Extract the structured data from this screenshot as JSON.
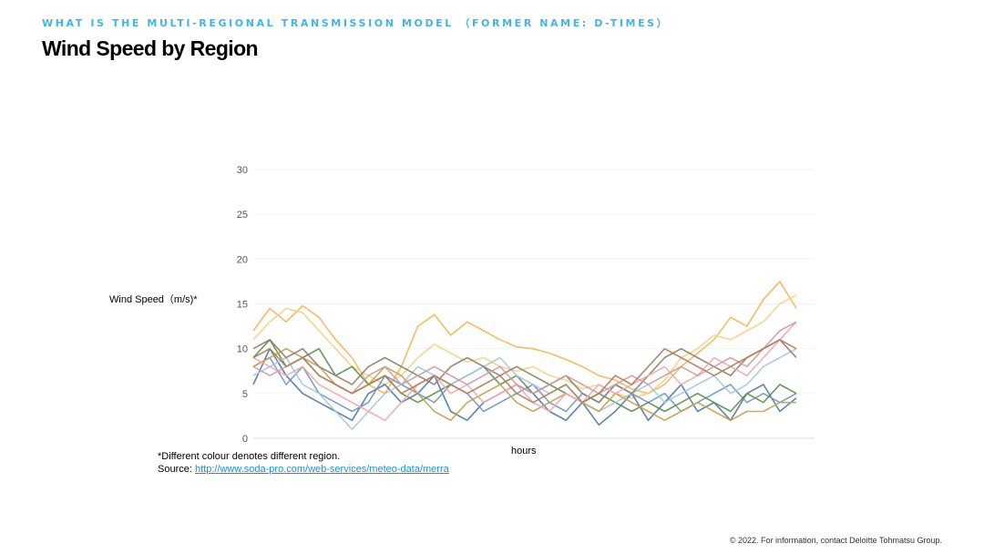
{
  "header": {
    "kicker": "WHAT IS THE MULTI-REGIONAL TRANSMISSION MODEL （FORMER NAME: D-TIMES）",
    "title": "Wind Speed by Region"
  },
  "notes": {
    "colour_note": "*Different colour denotes different region.",
    "source_prefix": "Source: ",
    "source_link": "http://www.soda-pro.com/web-services/meteo-data/merra"
  },
  "footer": {
    "copyright": "© 2022. For information, contact Deloitte Tohmatsu Group."
  },
  "chart_data": {
    "type": "line",
    "title": "",
    "xlabel": "hours",
    "ylabel": "Wind Speed（m/s)*",
    "ylim": [
      0,
      30
    ],
    "yticks": [
      0,
      5,
      10,
      15,
      20,
      25,
      30
    ],
    "grid": true,
    "legend": "none",
    "x": [
      0,
      3,
      6,
      9,
      12,
      15,
      18,
      21,
      24,
      27,
      30,
      33,
      36,
      39,
      42,
      45,
      48,
      51,
      54,
      57,
      60,
      63,
      66,
      69,
      72,
      75,
      78,
      81,
      84,
      87,
      90,
      93,
      96,
      99
    ],
    "series": [
      {
        "color": "#f5b556",
        "values": [
          12,
          14.5,
          13,
          14.8,
          13.5,
          11,
          9,
          6,
          5,
          8,
          12.5,
          13.8,
          11.5,
          13,
          12,
          11,
          10.2,
          10,
          9.5,
          8.8,
          8,
          7,
          6.5,
          5.5,
          5,
          6,
          8,
          9.5,
          11,
          13.5,
          12.5,
          15.5,
          17.5,
          14.5
        ]
      },
      {
        "color": "#f8cf86",
        "values": [
          11,
          13,
          14.5,
          14,
          12,
          10,
          8,
          7,
          6,
          7,
          9,
          10.5,
          9.5,
          8.5,
          9,
          8,
          7.5,
          8,
          7,
          6.5,
          5.5,
          6,
          5,
          4.5,
          5,
          6.5,
          9,
          10,
          11.5,
          11,
          12,
          13,
          15,
          16
        ]
      },
      {
        "color": "#4e7aa6",
        "values": [
          6,
          10,
          7,
          5,
          4,
          3,
          2,
          5,
          6,
          4,
          5,
          7,
          3,
          2,
          4,
          5,
          6,
          5,
          3,
          2,
          4,
          1.5,
          3,
          5,
          2,
          4,
          6,
          3,
          4,
          2,
          5,
          6,
          3,
          4.5
        ]
      },
      {
        "color": "#7297bf",
        "values": [
          8,
          9,
          6,
          8,
          5,
          4,
          3,
          4,
          7,
          6,
          5,
          4,
          6,
          5,
          3,
          4,
          5,
          6,
          4,
          3,
          5,
          4,
          6,
          5,
          4,
          5,
          3,
          4,
          5,
          6,
          4,
          5,
          4,
          5
        ]
      },
      {
        "color": "#5e8f4b",
        "values": [
          9,
          11,
          8,
          9,
          10,
          7,
          8,
          6,
          7,
          5,
          4,
          5,
          6,
          7,
          8,
          6,
          7,
          5,
          6,
          5,
          4,
          5,
          4,
          3,
          4,
          3,
          4,
          5,
          4,
          3,
          5,
          4,
          6,
          5
        ]
      },
      {
        "color": "#a5c8e1",
        "values": [
          7,
          8,
          9,
          6,
          5,
          3,
          1,
          3,
          5,
          6,
          8,
          7,
          6,
          7,
          8,
          9,
          7,
          6,
          5,
          6,
          4,
          3,
          4,
          5,
          6,
          4,
          5,
          6,
          7,
          5,
          6,
          8,
          9,
          10
        ]
      },
      {
        "color": "#c6a24a",
        "values": [
          8,
          9,
          10,
          9,
          8,
          6,
          5,
          6,
          8,
          7,
          5,
          3,
          2,
          4,
          5,
          6,
          4,
          3,
          4,
          5,
          4,
          3,
          5,
          4,
          3,
          2,
          3,
          4,
          3,
          2,
          3,
          3,
          4,
          4
        ]
      },
      {
        "color": "#8d7f6a",
        "values": [
          10,
          11,
          9,
          10,
          8,
          7,
          6,
          8,
          9,
          8,
          7,
          6,
          8,
          9,
          8,
          7,
          8,
          7,
          6,
          7,
          5,
          4,
          6,
          5,
          7,
          9,
          10,
          9,
          8,
          7,
          9,
          10,
          11,
          9
        ]
      },
      {
        "color": "#f4a7b2",
        "values": [
          9,
          8,
          7,
          8,
          6,
          5,
          4,
          3,
          2,
          4,
          6,
          7,
          5,
          6,
          4,
          5,
          6,
          4,
          3,
          5,
          4,
          6,
          5,
          6,
          7,
          8,
          6,
          7,
          9,
          8,
          7,
          9,
          11,
          13
        ]
      },
      {
        "color": "#cf9aa6",
        "values": [
          8,
          7,
          8,
          9,
          7,
          6,
          5,
          7,
          8,
          6,
          7,
          8,
          7,
          6,
          7,
          8,
          6,
          5,
          6,
          7,
          6,
          5,
          6,
          7,
          6,
          7,
          8,
          7,
          8,
          9,
          8,
          10,
          12,
          13
        ]
      },
      {
        "color": "#b07e5a",
        "values": [
          9,
          10,
          8,
          9,
          7,
          6,
          5,
          6,
          7,
          5,
          6,
          7,
          6,
          5,
          6,
          7,
          5,
          4,
          5,
          6,
          4,
          5,
          7,
          6,
          8,
          10,
          9,
          8,
          7,
          8,
          9,
          10,
          11,
          10
        ]
      }
    ]
  }
}
